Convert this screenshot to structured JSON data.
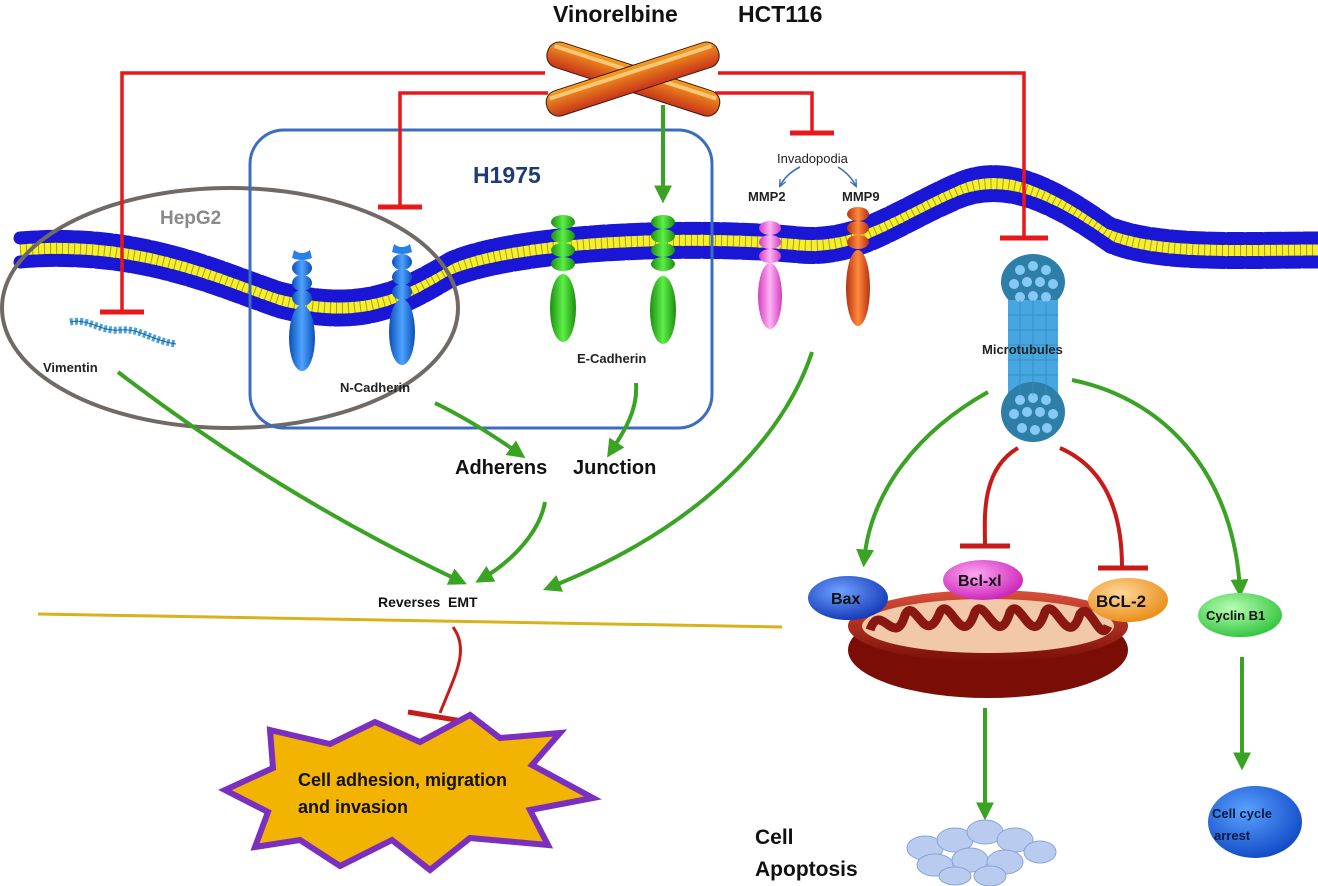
{
  "labels": {
    "drug": "Vinorelbine",
    "cell_hct116": "HCT116",
    "cell_h1975": "H1975",
    "cell_hepg2": "HepG2",
    "invadopodia": "Invadopodia",
    "mmp2": "MMP2",
    "mmp9": "MMP9",
    "vimentin": "Vimentin",
    "n_cadherin": "N-Cadherin",
    "e_cadherin": "E-Cadherin",
    "microtubules": "Microtubules",
    "adherens": "Adherens",
    "junction": "Junction",
    "reverses_emt": "Reverses  EMT",
    "bax": "Bax",
    "bcl_xl": "Bcl-xl",
    "bcl_2": "BCL-2",
    "cyclin_b1": "Cyclin B1",
    "cell_adhesion_line1": "Cell adhesion, migration",
    "cell_adhesion_line2": "and invasion",
    "cell_apoptosis_line1": "Cell",
    "cell_apoptosis_line2": "Apoptosis",
    "cell_cycle_arrest_line1": "Cell cycle",
    "cell_cycle_arrest_line2": "arrest"
  },
  "colors": {
    "inhibit": "#e8171b",
    "activate": "#3aa324",
    "h1975_box": "#3c6cc0",
    "hepg2_oval": "#6f6a66",
    "membrane_head": "#1a16d6",
    "membrane_tail": "#f6ef2a",
    "divider": "#d7b21b",
    "star_fill": "#f2b400",
    "star_stroke": "#7b2fc0",
    "n_cadherin": "#1f7be0",
    "e_cadherin": "#2fc21a",
    "mmp2": "#f25ad8",
    "mmp9": "#e0581a",
    "microtubule": "#47a6df",
    "bax": "#1b54dd",
    "bcl_xl": "#e04ad2",
    "bcl_2": "#f5a536",
    "cyclin_b1": "#3fd94a",
    "mito_outer": "#9b1a13",
    "cell_cycle": "#1f6be6",
    "apoptosis_bodies": "#b9ccf0"
  }
}
